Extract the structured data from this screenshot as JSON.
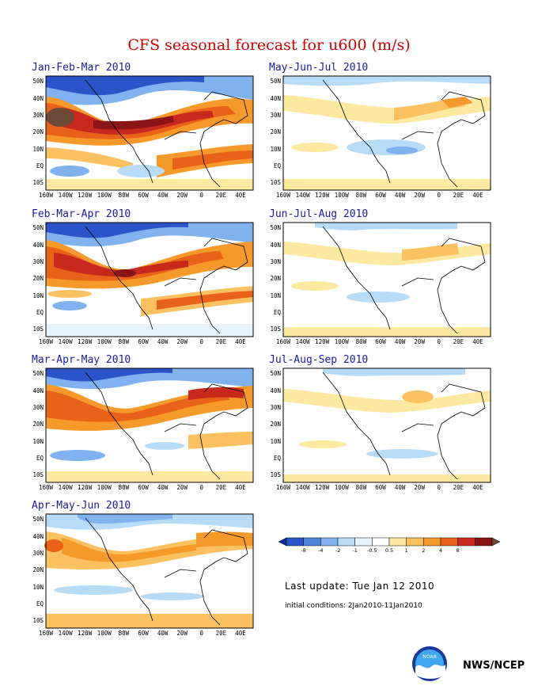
{
  "title": "CFS seasonal forecast for u600 (m/s)",
  "lat_labels": [
    "50N",
    "40N",
    "30N",
    "20N",
    "10N",
    "EQ",
    "10S"
  ],
  "lon_labels": [
    "160W",
    "140W",
    "120W",
    "100W",
    "80W",
    "60W",
    "40W",
    "20W",
    "0",
    "20E",
    "40E"
  ],
  "panels": [
    {
      "title": "Jan-Feb-Mar 2010"
    },
    {
      "title": "Feb-Mar-Apr 2010"
    },
    {
      "title": "Mar-Apr-May 2010"
    },
    {
      "title": "Apr-May-Jun 2010"
    },
    {
      "title": "May-Jun-Jul 2010"
    },
    {
      "title": "Jun-Jul-Aug 2010"
    },
    {
      "title": "Jul-Aug-Sep 2010"
    }
  ],
  "legend": {
    "ticks": [
      "-8",
      "-4",
      "-2",
      "-1",
      "-0.5",
      "0.5",
      "1",
      "2",
      "4",
      "8"
    ],
    "colors": [
      "#1a2a9a",
      "#2a55c8",
      "#4f86dd",
      "#7fb2ee",
      "#b8dcf8",
      "#e6f3fd",
      "#ffffff",
      "#fde9a0",
      "#fbc160",
      "#f59a2a",
      "#e8621a",
      "#c8281e",
      "#8a1418",
      "#6e4a3a"
    ]
  },
  "last_update": "Last update: Tue Jan 12 2010",
  "initial_conditions": "initial conditions: 2Jan2010-11Jan2010",
  "agency": "NWS/NCEP"
}
